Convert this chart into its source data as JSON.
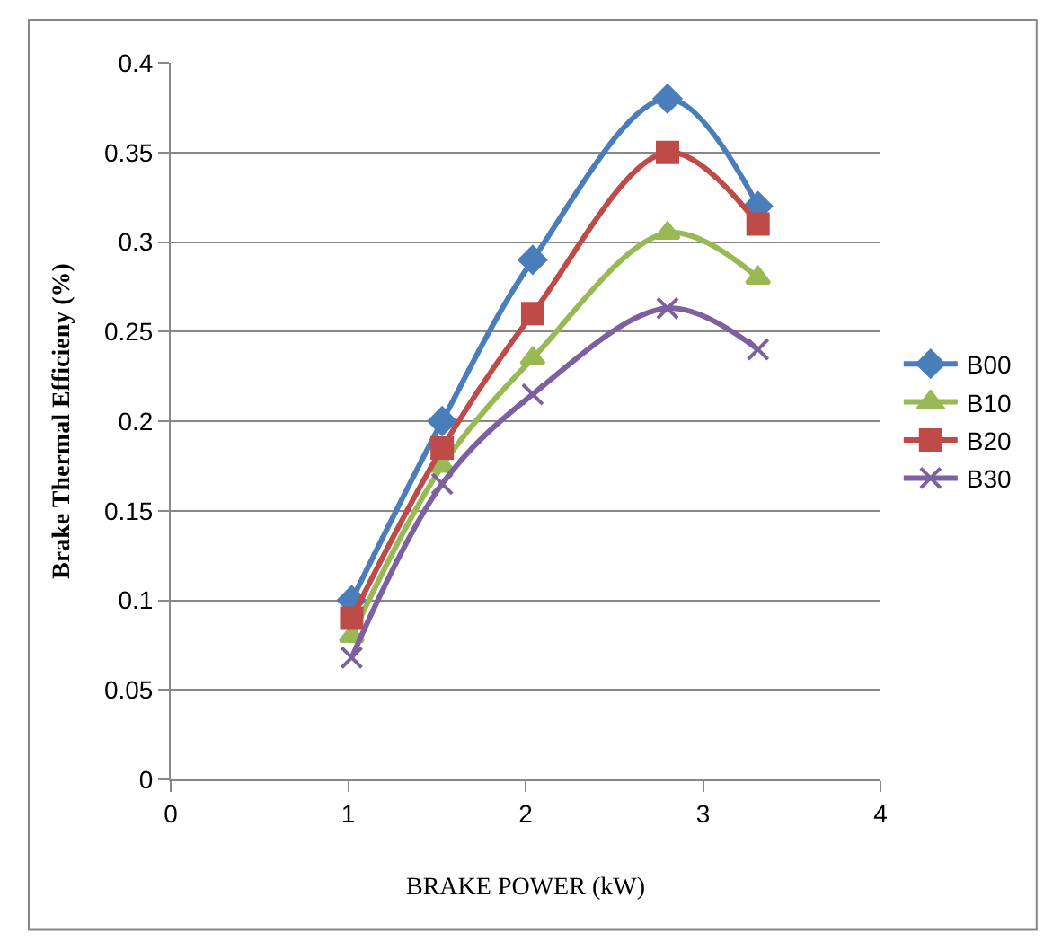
{
  "chart_data": {
    "type": "line",
    "xlabel": "BRAKE POWER (kW)",
    "ylabel": "Brake Thermal Efficieny (%)",
    "x": [
      1.02,
      1.53,
      2.04,
      2.8,
      3.31
    ],
    "series": [
      {
        "name": "B00",
        "color": "#4a7ebb",
        "marker": "diamond",
        "values": [
          0.1,
          0.2,
          0.29,
          0.38,
          0.32
        ]
      },
      {
        "name": "B10",
        "color": "#98b954",
        "marker": "triangle",
        "values": [
          0.08,
          0.175,
          0.235,
          0.305,
          0.28
        ]
      },
      {
        "name": "B20",
        "color": "#be4b48",
        "marker": "square",
        "values": [
          0.09,
          0.185,
          0.26,
          0.35,
          0.31
        ]
      },
      {
        "name": "B30",
        "color": "#7d60a0",
        "marker": "cross",
        "values": [
          0.068,
          0.165,
          0.215,
          0.263,
          0.24
        ]
      }
    ],
    "xlim": [
      0,
      4
    ],
    "xticks": [
      0,
      1,
      2,
      3,
      4
    ],
    "ylim": [
      0,
      0.4
    ],
    "yticks": [
      0,
      0.05,
      0.1,
      0.15,
      0.2,
      0.25,
      0.3,
      0.35,
      0.4
    ],
    "grid": "y",
    "legend": "right",
    "line_style": "solid"
  }
}
